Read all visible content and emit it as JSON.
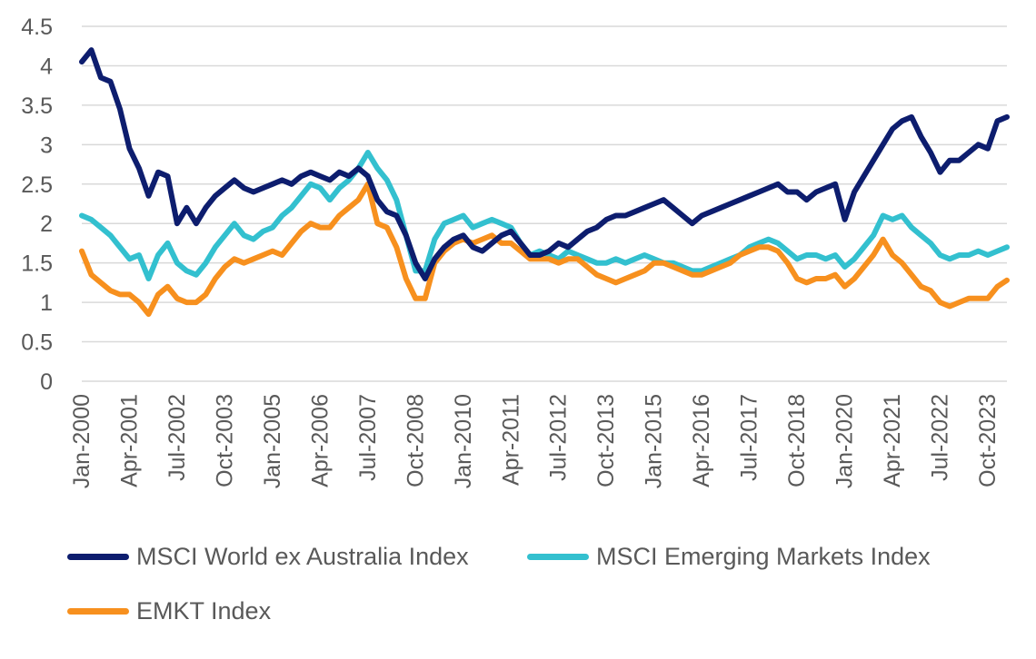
{
  "chart_data": {
    "type": "line",
    "ylim": [
      0,
      4.5
    ],
    "y_ticks": [
      "0",
      "0.5",
      "1",
      "1.5",
      "2",
      "2.5",
      "3",
      "3.5",
      "4",
      "4.5"
    ],
    "x_tick_labels": [
      "Jan-2000",
      "Apr-2001",
      "Jul-2002",
      "Oct-2003",
      "Jan-2005",
      "Apr-2006",
      "Jul-2007",
      "Oct-2008",
      "Jan-2010",
      "Apr-2011",
      "Jul-2012",
      "Oct-2013",
      "Jan-2015",
      "Apr-2016",
      "Jul-2017",
      "Oct-2018",
      "Jan-2020",
      "Apr-2021",
      "Jul-2022",
      "Oct-2023"
    ],
    "grid": "horizontal",
    "legend_position": "bottom",
    "x": [
      "Jan-2000",
      "Apr-2000",
      "Jul-2000",
      "Oct-2000",
      "Jan-2001",
      "Apr-2001",
      "Jul-2001",
      "Oct-2001",
      "Jan-2002",
      "Apr-2002",
      "Jul-2002",
      "Oct-2002",
      "Jan-2003",
      "Apr-2003",
      "Jul-2003",
      "Oct-2003",
      "Jan-2004",
      "Apr-2004",
      "Jul-2004",
      "Oct-2004",
      "Jan-2005",
      "Apr-2005",
      "Jul-2005",
      "Oct-2005",
      "Jan-2006",
      "Apr-2006",
      "Jul-2006",
      "Oct-2006",
      "Jan-2007",
      "Apr-2007",
      "Jul-2007",
      "Oct-2007",
      "Jan-2008",
      "Apr-2008",
      "Jul-2008",
      "Oct-2008",
      "Jan-2009",
      "Apr-2009",
      "Jul-2009",
      "Oct-2009",
      "Jan-2010",
      "Apr-2010",
      "Jul-2010",
      "Oct-2010",
      "Jan-2011",
      "Apr-2011",
      "Jul-2011",
      "Oct-2011",
      "Jan-2012",
      "Apr-2012",
      "Jul-2012",
      "Oct-2012",
      "Jan-2013",
      "Apr-2013",
      "Jul-2013",
      "Oct-2013",
      "Jan-2014",
      "Apr-2014",
      "Jul-2014",
      "Oct-2014",
      "Jan-2015",
      "Apr-2015",
      "Jul-2015",
      "Oct-2015",
      "Jan-2016",
      "Apr-2016",
      "Jul-2016",
      "Oct-2016",
      "Jan-2017",
      "Apr-2017",
      "Jul-2017",
      "Oct-2017",
      "Jan-2018",
      "Apr-2018",
      "Jul-2018",
      "Oct-2018",
      "Jan-2019",
      "Apr-2019",
      "Jul-2019",
      "Oct-2019",
      "Jan-2020",
      "Apr-2020",
      "Jul-2020",
      "Oct-2020",
      "Jan-2021",
      "Apr-2021",
      "Jul-2021",
      "Oct-2021",
      "Jan-2022",
      "Apr-2022",
      "Jul-2022",
      "Oct-2022",
      "Jan-2023",
      "Apr-2023",
      "Jul-2023",
      "Oct-2023",
      "Jan-2024",
      "Apr-2024"
    ],
    "series": [
      {
        "name": "MSCI World ex Australia Index",
        "color": "#0d1d6e",
        "values": [
          4.05,
          4.2,
          3.85,
          3.8,
          3.45,
          2.95,
          2.7,
          2.35,
          2.65,
          2.6,
          2.0,
          2.2,
          2.0,
          2.2,
          2.35,
          2.45,
          2.55,
          2.45,
          2.4,
          2.45,
          2.5,
          2.55,
          2.5,
          2.6,
          2.65,
          2.6,
          2.55,
          2.65,
          2.6,
          2.7,
          2.6,
          2.3,
          2.15,
          2.1,
          1.85,
          1.5,
          1.3,
          1.55,
          1.7,
          1.8,
          1.85,
          1.7,
          1.65,
          1.75,
          1.85,
          1.9,
          1.75,
          1.6,
          1.6,
          1.65,
          1.75,
          1.7,
          1.8,
          1.9,
          1.95,
          2.05,
          2.1,
          2.1,
          2.15,
          2.2,
          2.25,
          2.3,
          2.2,
          2.1,
          2.0,
          2.1,
          2.15,
          2.2,
          2.25,
          2.3,
          2.35,
          2.4,
          2.45,
          2.5,
          2.4,
          2.4,
          2.3,
          2.4,
          2.45,
          2.5,
          2.05,
          2.4,
          2.6,
          2.8,
          3.0,
          3.2,
          3.3,
          3.35,
          3.1,
          2.9,
          2.65,
          2.8,
          2.8,
          2.9,
          3.0,
          2.95,
          3.3,
          3.35
        ]
      },
      {
        "name": "MSCI Emerging Markets Index",
        "color": "#33c0cf",
        "values": [
          2.1,
          2.05,
          1.95,
          1.85,
          1.7,
          1.55,
          1.6,
          1.3,
          1.6,
          1.75,
          1.5,
          1.4,
          1.35,
          1.5,
          1.7,
          1.85,
          2.0,
          1.85,
          1.8,
          1.9,
          1.95,
          2.1,
          2.2,
          2.35,
          2.5,
          2.45,
          2.3,
          2.45,
          2.55,
          2.7,
          2.9,
          2.7,
          2.55,
          2.3,
          1.85,
          1.4,
          1.4,
          1.8,
          2.0,
          2.05,
          2.1,
          1.95,
          2.0,
          2.05,
          2.0,
          1.95,
          1.75,
          1.6,
          1.65,
          1.6,
          1.55,
          1.65,
          1.6,
          1.55,
          1.5,
          1.5,
          1.55,
          1.5,
          1.55,
          1.6,
          1.55,
          1.5,
          1.5,
          1.45,
          1.4,
          1.4,
          1.45,
          1.5,
          1.55,
          1.6,
          1.7,
          1.75,
          1.8,
          1.75,
          1.65,
          1.55,
          1.6,
          1.6,
          1.55,
          1.6,
          1.45,
          1.55,
          1.7,
          1.85,
          2.1,
          2.05,
          2.1,
          1.95,
          1.85,
          1.75,
          1.6,
          1.55,
          1.6,
          1.6,
          1.65,
          1.6,
          1.65,
          1.7
        ]
      },
      {
        "name": "EMKT Index",
        "color": "#f7901e",
        "values": [
          1.65,
          1.35,
          1.25,
          1.15,
          1.1,
          1.1,
          1.0,
          0.85,
          1.1,
          1.2,
          1.05,
          1.0,
          1.0,
          1.1,
          1.3,
          1.45,
          1.55,
          1.5,
          1.55,
          1.6,
          1.65,
          1.6,
          1.75,
          1.9,
          2.0,
          1.95,
          1.95,
          2.1,
          2.2,
          2.3,
          2.5,
          2.0,
          1.95,
          1.7,
          1.3,
          1.05,
          1.05,
          1.5,
          1.65,
          1.75,
          1.8,
          1.75,
          1.8,
          1.85,
          1.75,
          1.75,
          1.65,
          1.55,
          1.55,
          1.55,
          1.5,
          1.55,
          1.55,
          1.45,
          1.35,
          1.3,
          1.25,
          1.3,
          1.35,
          1.4,
          1.5,
          1.5,
          1.45,
          1.4,
          1.35,
          1.35,
          1.4,
          1.45,
          1.5,
          1.6,
          1.65,
          1.7,
          1.7,
          1.65,
          1.5,
          1.3,
          1.25,
          1.3,
          1.3,
          1.35,
          1.2,
          1.3,
          1.45,
          1.6,
          1.8,
          1.6,
          1.5,
          1.35,
          1.2,
          1.15,
          1.0,
          0.95,
          1.0,
          1.05,
          1.05,
          1.05,
          1.2,
          1.28
        ]
      }
    ]
  }
}
